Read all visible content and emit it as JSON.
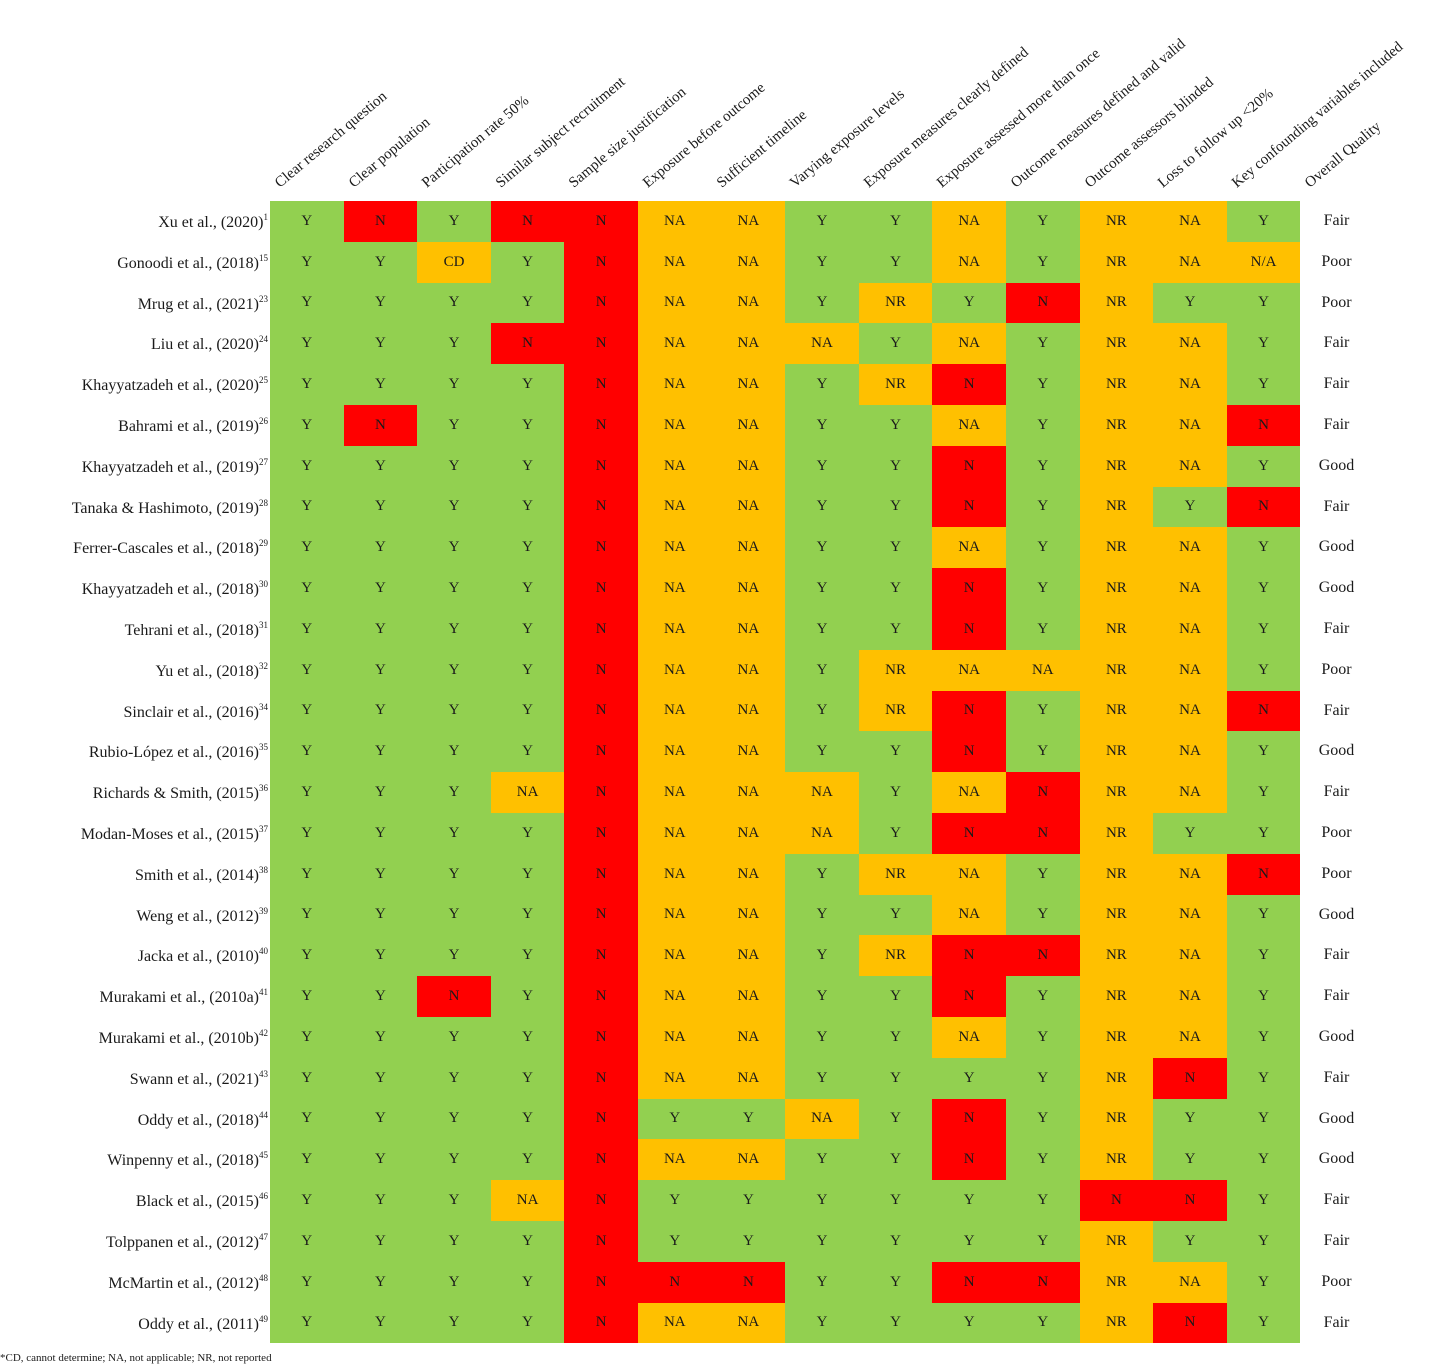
{
  "chart_data": {
    "type": "table",
    "columns": [
      "Clear research question",
      "Clear population",
      "Participation rate 50%",
      "Similar subject recruitment",
      "Sample size justification",
      "Exposure before outcome",
      "Sufficient timeline",
      "Varying exposure levels",
      "Exposure measures clearly defined",
      "Exposure assessed more than once",
      "Outcome measures defined and valid",
      "Outcome assessors blinded",
      "Loss to follow up <20%",
      "Key confounding variables included",
      "Overall Quality"
    ],
    "colors": {
      "green": "#92d050",
      "orange": "#ffc000",
      "red": "#ff0000"
    },
    "value_colors": {
      "Y": "green",
      "N": "red",
      "NA": "orange",
      "NR": "orange",
      "CD": "orange",
      "N/A": "orange"
    },
    "rows": [
      {
        "study": "Xu et al., (2020)",
        "ref": "1",
        "values": [
          "Y",
          "N",
          "Y",
          "N",
          "N",
          "NA",
          "NA",
          "Y",
          "Y",
          "NA",
          "Y",
          "NR",
          "NA",
          "Y"
        ],
        "quality": "Fair"
      },
      {
        "study": "Gonoodi et al., (2018)",
        "ref": "15",
        "values": [
          "Y",
          "Y",
          "CD",
          "Y",
          "N",
          "NA",
          "NA",
          "Y",
          "Y",
          "NA",
          "Y",
          "NR",
          "NA",
          "N/A"
        ],
        "quality": "Poor"
      },
      {
        "study": "Mrug et al., (2021)",
        "ref": "23",
        "values": [
          "Y",
          "Y",
          "Y",
          "Y",
          "N",
          "NA",
          "NA",
          "Y",
          "NR",
          "Y",
          "N",
          "NR",
          "Y",
          "Y"
        ],
        "quality": "Poor"
      },
      {
        "study": "Liu et al., (2020)",
        "ref": "24",
        "values": [
          "Y",
          "Y",
          "Y",
          "N",
          "N",
          "NA",
          "NA",
          "NA",
          "Y",
          "NA",
          "Y",
          "NR",
          "NA",
          "Y"
        ],
        "quality": "Fair"
      },
      {
        "study": "Khayyatzadeh et al., (2020)",
        "ref": "25",
        "values": [
          "Y",
          "Y",
          "Y",
          "Y",
          "N",
          "NA",
          "NA",
          "Y",
          "NR",
          "N",
          "Y",
          "NR",
          "NA",
          "Y"
        ],
        "quality": "Fair"
      },
      {
        "study": "Bahrami et al., (2019)",
        "ref": "26",
        "values": [
          "Y",
          "N",
          "Y",
          "Y",
          "N",
          "NA",
          "NA",
          "Y",
          "Y",
          "NA",
          "Y",
          "NR",
          "NA",
          "N"
        ],
        "quality": "Fair"
      },
      {
        "study": "Khayyatzadeh et al., (2019)",
        "ref": "27",
        "values": [
          "Y",
          "Y",
          "Y",
          "Y",
          "N",
          "NA",
          "NA",
          "Y",
          "Y",
          "N",
          "Y",
          "NR",
          "NA",
          "Y"
        ],
        "quality": "Good"
      },
      {
        "study": "Tanaka & Hashimoto, (2019)",
        "ref": "28",
        "values": [
          "Y",
          "Y",
          "Y",
          "Y",
          "N",
          "NA",
          "NA",
          "Y",
          "Y",
          "N",
          "Y",
          "NR",
          "Y",
          "N"
        ],
        "quality": "Fair"
      },
      {
        "study": "Ferrer-Cascales et al., (2018)",
        "ref": "29",
        "values": [
          "Y",
          "Y",
          "Y",
          "Y",
          "N",
          "NA",
          "NA",
          "Y",
          "Y",
          "NA",
          "Y",
          "NR",
          "NA",
          "Y"
        ],
        "quality": "Good"
      },
      {
        "study": "Khayyatzadeh et al., (2018)",
        "ref": "30",
        "values": [
          "Y",
          "Y",
          "Y",
          "Y",
          "N",
          "NA",
          "NA",
          "Y",
          "Y",
          "N",
          "Y",
          "NR",
          "NA",
          "Y"
        ],
        "quality": "Good"
      },
      {
        "study": "Tehrani et al., (2018)",
        "ref": "31",
        "values": [
          "Y",
          "Y",
          "Y",
          "Y",
          "N",
          "NA",
          "NA",
          "Y",
          "Y",
          "N",
          "Y",
          "NR",
          "NA",
          "Y"
        ],
        "quality": "Fair"
      },
      {
        "study": "Yu et al., (2018)",
        "ref": "32",
        "values": [
          "Y",
          "Y",
          "Y",
          "Y",
          "N",
          "NA",
          "NA",
          "Y",
          "NR",
          "NA",
          "NA",
          "NR",
          "NA",
          "Y"
        ],
        "quality": "Poor"
      },
      {
        "study": "Sinclair et al., (2016)",
        "ref": "34",
        "values": [
          "Y",
          "Y",
          "Y",
          "Y",
          "N",
          "NA",
          "NA",
          "Y",
          "NR",
          "N",
          "Y",
          "NR",
          "NA",
          "N"
        ],
        "quality": "Fair"
      },
      {
        "study": "Rubio-López et al., (2016)",
        "ref": "35",
        "values": [
          "Y",
          "Y",
          "Y",
          "Y",
          "N",
          "NA",
          "NA",
          "Y",
          "Y",
          "N",
          "Y",
          "NR",
          "NA",
          "Y"
        ],
        "quality": "Good"
      },
      {
        "study": "Richards & Smith, (2015)",
        "ref": "36",
        "values": [
          "Y",
          "Y",
          "Y",
          "NA",
          "N",
          "NA",
          "NA",
          "NA",
          "Y",
          "NA",
          "N",
          "NR",
          "NA",
          "Y"
        ],
        "quality": "Fair"
      },
      {
        "study": "Modan-Moses et al., (2015)",
        "ref": "37",
        "values": [
          "Y",
          "Y",
          "Y",
          "Y",
          "N",
          "NA",
          "NA",
          "NA",
          "Y",
          "N",
          "N",
          "NR",
          "Y",
          "Y"
        ],
        "quality": "Poor"
      },
      {
        "study": "Smith et al., (2014)",
        "ref": "38",
        "values": [
          "Y",
          "Y",
          "Y",
          "Y",
          "N",
          "NA",
          "NA",
          "Y",
          "NR",
          "NA",
          "Y",
          "NR",
          "NA",
          "N"
        ],
        "quality": "Poor"
      },
      {
        "study": "Weng et al., (2012)",
        "ref": "39",
        "values": [
          "Y",
          "Y",
          "Y",
          "Y",
          "N",
          "NA",
          "NA",
          "Y",
          "Y",
          "NA",
          "Y",
          "NR",
          "NA",
          "Y"
        ],
        "quality": "Good"
      },
      {
        "study": "Jacka et al., (2010)",
        "ref": "40",
        "values": [
          "Y",
          "Y",
          "Y",
          "Y",
          "N",
          "NA",
          "NA",
          "Y",
          "NR",
          "N",
          "N",
          "NR",
          "NA",
          "Y"
        ],
        "quality": "Fair"
      },
      {
        "study": "Murakami et al., (2010a)",
        "ref": "41",
        "values": [
          "Y",
          "Y",
          "N",
          "Y",
          "N",
          "NA",
          "NA",
          "Y",
          "Y",
          "N",
          "Y",
          "NR",
          "NA",
          "Y"
        ],
        "quality": "Fair"
      },
      {
        "study": "Murakami et al., (2010b)",
        "ref": "42",
        "values": [
          "Y",
          "Y",
          "Y",
          "Y",
          "N",
          "NA",
          "NA",
          "Y",
          "Y",
          "NA",
          "Y",
          "NR",
          "NA",
          "Y"
        ],
        "quality": "Good"
      },
      {
        "study": "Swann et al., (2021)",
        "ref": "43",
        "values": [
          "Y",
          "Y",
          "Y",
          "Y",
          "N",
          "NA",
          "NA",
          "Y",
          "Y",
          "Y",
          "Y",
          "NR",
          "N",
          "Y"
        ],
        "quality": "Fair"
      },
      {
        "study": "Oddy et al., (2018)",
        "ref": "44",
        "values": [
          "Y",
          "Y",
          "Y",
          "Y",
          "N",
          "Y",
          "Y",
          "NA",
          "Y",
          "N",
          "Y",
          "NR",
          "Y",
          "Y"
        ],
        "quality": "Good"
      },
      {
        "study": "Winpenny et al., (2018)",
        "ref": "45",
        "values": [
          "Y",
          "Y",
          "Y",
          "Y",
          "N",
          "NA",
          "NA",
          "Y",
          "Y",
          "N",
          "Y",
          "NR",
          "Y",
          "Y"
        ],
        "quality": "Good"
      },
      {
        "study": "Black et al., (2015)",
        "ref": "46",
        "values": [
          "Y",
          "Y",
          "Y",
          "NA",
          "N",
          "Y",
          "Y",
          "Y",
          "Y",
          "Y",
          "Y",
          "N",
          "N",
          "Y"
        ],
        "quality": "Fair"
      },
      {
        "study": "Tolppanen et al., (2012)",
        "ref": "47",
        "values": [
          "Y",
          "Y",
          "Y",
          "Y",
          "N",
          "Y",
          "Y",
          "Y",
          "Y",
          "Y",
          "Y",
          "NR",
          "Y",
          "Y"
        ],
        "quality": "Fair"
      },
      {
        "study": "McMartin et al., (2012)",
        "ref": "48",
        "values": [
          "Y",
          "Y",
          "Y",
          "Y",
          "N",
          "N",
          "N",
          "Y",
          "Y",
          "N",
          "N",
          "NR",
          "NA",
          "Y"
        ],
        "quality": "Poor"
      },
      {
        "study": "Oddy et al., (2011)",
        "ref": "49",
        "values": [
          "Y",
          "Y",
          "Y",
          "Y",
          "N",
          "NA",
          "NA",
          "Y",
          "Y",
          "Y",
          "Y",
          "NR",
          "N",
          "Y"
        ],
        "quality": "Fair"
      }
    ]
  },
  "footnote": "*CD, cannot determine; NA, not applicable; NR, not reported"
}
